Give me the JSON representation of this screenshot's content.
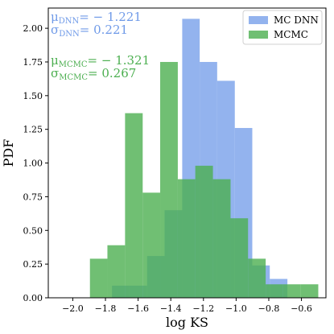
{
  "chart_data": {
    "type": "bar",
    "histogram": true,
    "xlabel": "log KS",
    "ylabel": "PDF",
    "xlim": [
      -2.15,
      -0.45
    ],
    "ylim": [
      0,
      2.15
    ],
    "xticks": [
      "−2.0",
      "−1.8",
      "−1.6",
      "−1.4",
      "−1.2",
      "−1.0",
      "−0.8",
      "−0.6"
    ],
    "xtick_values": [
      -2.0,
      -1.8,
      -1.6,
      -1.4,
      -1.2,
      -1.0,
      -0.8,
      -0.6
    ],
    "yticks": [
      "0.00",
      "0.25",
      "0.50",
      "0.75",
      "1.00",
      "1.25",
      "1.50",
      "1.75",
      "2.00"
    ],
    "ytick_values": [
      0,
      0.25,
      0.5,
      0.75,
      1.0,
      1.25,
      1.5,
      1.75,
      2.0
    ],
    "grid": false,
    "legend_position": "top-right",
    "series": [
      {
        "name": "MC DNN",
        "color": "#6f9ae8",
        "bin_edges": [
          -1.76,
          -1.653,
          -1.545,
          -1.438,
          -1.33,
          -1.223,
          -1.116,
          -1.008,
          -0.901,
          -0.794,
          -0.686
        ],
        "values": [
          0.09,
          0.09,
          0.31,
          0.65,
          2.07,
          1.75,
          1.61,
          1.26,
          0.24,
          0.14
        ],
        "stat_lines": [
          {
            "prefix": "μ",
            "sub": "DNN",
            "text": "= − 1.221"
          },
          {
            "prefix": "σ",
            "sub": "DNN",
            "text": "= 0.221"
          }
        ]
      },
      {
        "name": "MCMC",
        "color": "#4caf50",
        "bin_edges": [
          -1.895,
          -1.788,
          -1.68,
          -1.572,
          -1.465,
          -1.357,
          -1.25,
          -1.142,
          -1.034,
          -0.927,
          -0.819,
          -0.712,
          -0.604,
          -0.497
        ],
        "values": [
          0.29,
          0.39,
          1.37,
          0.78,
          1.75,
          0.88,
          0.98,
          0.88,
          0.59,
          0.29,
          0.1,
          0.1,
          0.1
        ],
        "stat_lines": [
          {
            "prefix": "μ",
            "sub": "MCMC",
            "text": "= − 1.321"
          },
          {
            "prefix": "σ",
            "sub": "MCMC",
            "text": "= 0.267"
          }
        ]
      }
    ]
  }
}
